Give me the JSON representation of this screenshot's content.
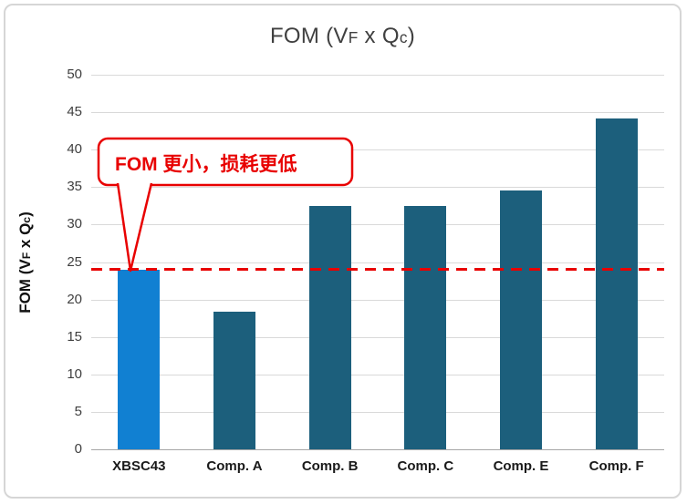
{
  "title": {
    "parts": [
      "FOM (V",
      "F",
      " x Q",
      "c",
      ")"
    ]
  },
  "ylabel": {
    "parts": [
      "FOM (V",
      "F",
      " x Q",
      "c",
      ")"
    ]
  },
  "callout": {
    "text": "FOM 更小，损耗更低",
    "color": "#e80000"
  },
  "colors": {
    "highlight_bar": "#1180d2",
    "base_bar": "#1c5f7c",
    "reference_line": "#e80000",
    "gridline": "#d9d9d9",
    "axis_line": "#a6a6a6",
    "title_text": "#404040"
  },
  "chart_data": {
    "type": "bar",
    "title": "FOM (VF x Qc)",
    "ylabel": "FOM (VF x Qc)",
    "xlabel": "",
    "categories": [
      "XBSC43",
      "Comp. A",
      "Comp. B",
      "Comp. C",
      "Comp. E",
      "Comp. F"
    ],
    "values": [
      24,
      18.4,
      32.5,
      32.5,
      34.5,
      44.2
    ],
    "bar_colors": [
      "#1180d2",
      "#1c5f7c",
      "#1c5f7c",
      "#1c5f7c",
      "#1c5f7c",
      "#1c5f7c"
    ],
    "ylim": [
      0,
      50
    ],
    "ytick_step": 5,
    "grid": true,
    "legend": "none",
    "reference_line": {
      "value": 24,
      "color": "#e80000",
      "style": "dashed"
    },
    "annotation": {
      "text": "FOM 更小，损耗更低",
      "target_category": "XBSC43",
      "color": "#e80000"
    }
  }
}
